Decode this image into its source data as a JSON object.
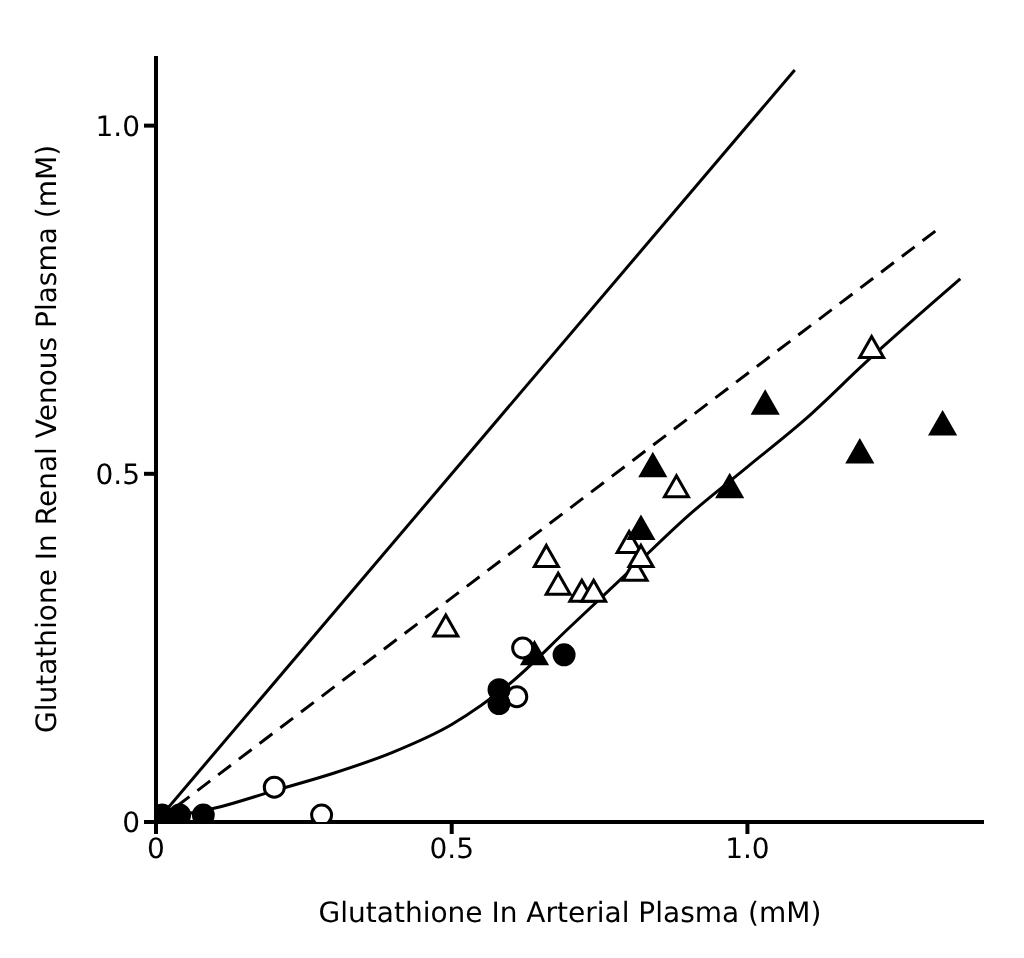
{
  "chart_data": {
    "type": "scatter",
    "xlabel": "Glutathione In Arterial Plasma (mM)",
    "ylabel": "Glutathione In Renal Venous Plasma (mM)",
    "xlim": [
      0,
      1.4
    ],
    "ylim": [
      0,
      1.1
    ],
    "xticks": [
      0,
      0.5,
      {
        "value": 1.0,
        "label": "1.0"
      }
    ],
    "yticks": [
      0,
      {
        "value": 0.5,
        "label": "0.5"
      },
      {
        "value": 1.0,
        "label": "1.0"
      }
    ],
    "grid": false,
    "legend": false,
    "series": [
      {
        "marker": "triangle",
        "color": "#ffffff",
        "x": [
          0.49,
          0.66,
          0.68,
          0.72,
          0.74,
          0.8,
          0.81,
          0.82,
          0.88,
          1.21
        ],
        "values": [
          0.28,
          0.38,
          0.34,
          0.33,
          0.33,
          0.4,
          0.36,
          0.38,
          0.48,
          0.68
        ]
      },
      {
        "marker": "triangle",
        "color": "#000000",
        "x": [
          0.64,
          0.82,
          0.84,
          0.97,
          1.03,
          1.19,
          1.33
        ],
        "values": [
          0.24,
          0.42,
          0.51,
          0.48,
          0.6,
          0.53,
          0.57
        ]
      },
      {
        "marker": "circle",
        "color": "#ffffff",
        "x": [
          0.2,
          0.28,
          0.62,
          0.61
        ],
        "values": [
          0.05,
          0.01,
          0.25,
          0.18
        ]
      },
      {
        "marker": "circle",
        "color": "#000000",
        "x": [
          0.01,
          0.04,
          0.08,
          0.58,
          0.58,
          0.69
        ],
        "values": [
          0.01,
          0.01,
          0.01,
          0.19,
          0.17,
          0.24
        ]
      },
      {
        "type": "line",
        "marker": "none",
        "line_style": "solid",
        "color": "#000000",
        "x": [
          0,
          1.08
        ],
        "values": [
          0,
          1.08
        ]
      },
      {
        "type": "line",
        "marker": "none",
        "line_style": "dashed",
        "color": "#000000",
        "x": [
          0,
          1.32
        ],
        "values": [
          0,
          0.85
        ]
      },
      {
        "type": "line",
        "marker": "none",
        "line_style": "solid",
        "color": "#000000",
        "x": [
          0,
          0.1,
          0.2,
          0.3,
          0.4,
          0.5,
          0.6,
          0.7,
          0.8,
          0.9,
          1.0,
          1.1,
          1.2,
          1.36
        ],
        "values": [
          0.005,
          0.02,
          0.045,
          0.07,
          0.1,
          0.14,
          0.2,
          0.28,
          0.36,
          0.44,
          0.51,
          0.58,
          0.66,
          0.78
        ]
      }
    ]
  }
}
